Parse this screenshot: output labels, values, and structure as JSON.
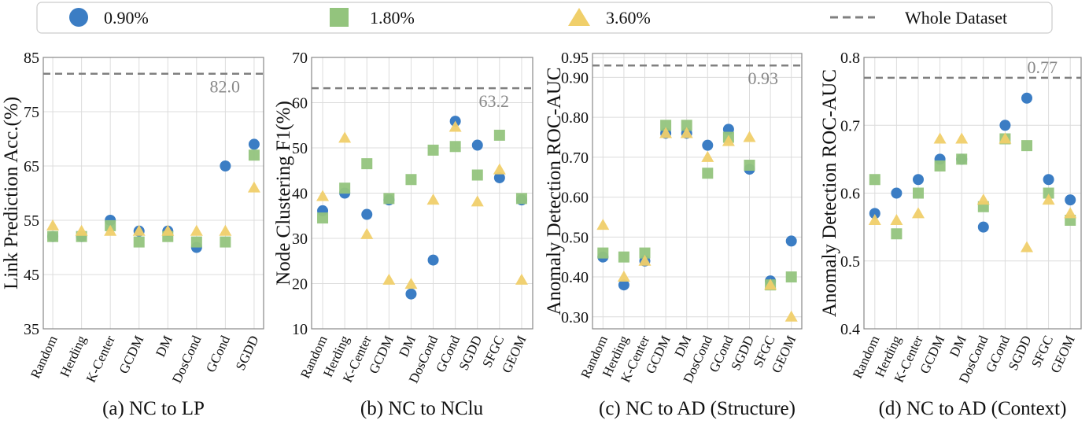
{
  "legend": {
    "items": [
      {
        "label": "0.90%",
        "marker": "circle",
        "color": "#3b7dc4"
      },
      {
        "label": "1.80%",
        "marker": "square",
        "color": "#93c47d"
      },
      {
        "label": "3.60%",
        "marker": "triangle",
        "color": "#f0cf6a"
      },
      {
        "label": "Whole Dataset",
        "marker": "dashed-line",
        "color": "#808080"
      }
    ],
    "placement": "top"
  },
  "chart_data": [
    {
      "type": "scatter",
      "caption": "(a) NC to LP",
      "ylabel": "Link Prediction Acc.(%)",
      "ylim": [
        35,
        85
      ],
      "yticks": [
        "35",
        "45",
        "55",
        "65",
        "75",
        "85"
      ],
      "ytick_values": [
        35,
        45,
        55,
        65,
        75,
        85
      ],
      "grid": true,
      "categories": [
        "Random",
        "Herding",
        "K-Center",
        "GCDM",
        "DM",
        "DosCond",
        "GCond",
        "SGDD"
      ],
      "series": [
        {
          "name": "0.90%",
          "values": [
            52,
            52,
            55,
            53,
            53,
            50,
            65,
            69
          ]
        },
        {
          "name": "1.80%",
          "values": [
            52,
            52,
            54,
            51,
            52,
            51,
            51,
            67
          ]
        },
        {
          "name": "3.60%",
          "values": [
            54,
            53,
            53,
            53,
            53,
            53,
            53,
            61
          ]
        }
      ],
      "whole_dataset": 82.0,
      "whole_label": "82.0"
    },
    {
      "type": "scatter",
      "caption": "(b) NC to NClu",
      "ylabel": "Node Clustering F1(%)",
      "ylim": [
        10,
        70
      ],
      "yticks": [
        "10",
        "20",
        "30",
        "40",
        "50",
        "60",
        "70"
      ],
      "ytick_values": [
        10,
        20,
        30,
        40,
        50,
        60,
        70
      ],
      "grid": true,
      "categories": [
        "Random",
        "Herding",
        "K-Center",
        "GCDM",
        "DM",
        "DosCond",
        "GCond",
        "SGDD",
        "SFGC",
        "GEOM"
      ],
      "series": [
        {
          "name": "0.90%",
          "values": [
            36.1,
            40.0,
            35.3,
            38.5,
            17.7,
            25.2,
            55.9,
            50.6,
            43.4,
            38.5
          ]
        },
        {
          "name": "1.80%",
          "values": [
            34.5,
            41.1,
            46.5,
            38.8,
            43.0,
            49.5,
            50.3,
            44.0,
            52.8,
            38.8
          ]
        },
        {
          "name": "3.60%",
          "values": [
            39.3,
            52.2,
            30.9,
            20.8,
            19.9,
            38.5,
            54.6,
            38.1,
            45.2,
            20.8
          ]
        }
      ],
      "whole_dataset": 63.2,
      "whole_label": "63.2"
    },
    {
      "type": "scatter",
      "caption": "(c) NC to AD (Structure)",
      "ylabel": "Anomaly Detection ROC-AUC",
      "ylim": [
        0.27,
        0.96
      ],
      "yticks": [
        "0.30",
        "0.40",
        "0.50",
        "0.60",
        "0.70",
        "0.80",
        "0.90",
        "0.95"
      ],
      "ytick_values": [
        0.3,
        0.4,
        0.5,
        0.6,
        0.7,
        0.8,
        0.9,
        0.95
      ],
      "grid": true,
      "categories": [
        "Random",
        "Herding",
        "K-Center",
        "GCDM",
        "DM",
        "DosCond",
        "GCond",
        "SGDD",
        "SFGC",
        "GEOM"
      ],
      "series": [
        {
          "name": "0.90%",
          "values": [
            0.45,
            0.38,
            0.44,
            0.76,
            0.76,
            0.73,
            0.77,
            0.67,
            0.39,
            0.49
          ]
        },
        {
          "name": "1.80%",
          "values": [
            0.46,
            0.45,
            0.46,
            0.78,
            0.78,
            0.66,
            0.75,
            0.68,
            0.38,
            0.4
          ]
        },
        {
          "name": "3.60%",
          "values": [
            0.53,
            0.4,
            0.44,
            0.76,
            0.76,
            0.7,
            0.74,
            0.75,
            0.38,
            0.3
          ]
        }
      ],
      "whole_dataset": 0.93,
      "whole_label": "0.93"
    },
    {
      "type": "scatter",
      "caption": "(d) NC to AD (Context)",
      "ylabel": "Anomaly Detection ROC-AUC",
      "ylim": [
        0.4,
        0.8
      ],
      "yticks": [
        "0.4",
        "0.5",
        "0.6",
        "0.7",
        "0.8"
      ],
      "ytick_values": [
        0.4,
        0.5,
        0.6,
        0.7,
        0.8
      ],
      "grid": true,
      "categories": [
        "Random",
        "Herding",
        "K-Center",
        "GCDM",
        "DM",
        "DosCond",
        "GCond",
        "SGDD",
        "SFGC",
        "GEOM"
      ],
      "series": [
        {
          "name": "0.90%",
          "values": [
            0.57,
            0.6,
            0.62,
            0.65,
            0.65,
            0.55,
            0.7,
            0.74,
            0.62,
            0.59
          ]
        },
        {
          "name": "1.80%",
          "values": [
            0.62,
            0.54,
            0.6,
            0.64,
            0.65,
            0.58,
            0.68,
            0.67,
            0.6,
            0.56
          ]
        },
        {
          "name": "3.60%",
          "values": [
            0.56,
            0.56,
            0.57,
            0.68,
            0.68,
            0.59,
            0.68,
            0.52,
            0.59,
            0.57
          ]
        }
      ],
      "whole_dataset": 0.77,
      "whole_label": "0.77"
    }
  ]
}
